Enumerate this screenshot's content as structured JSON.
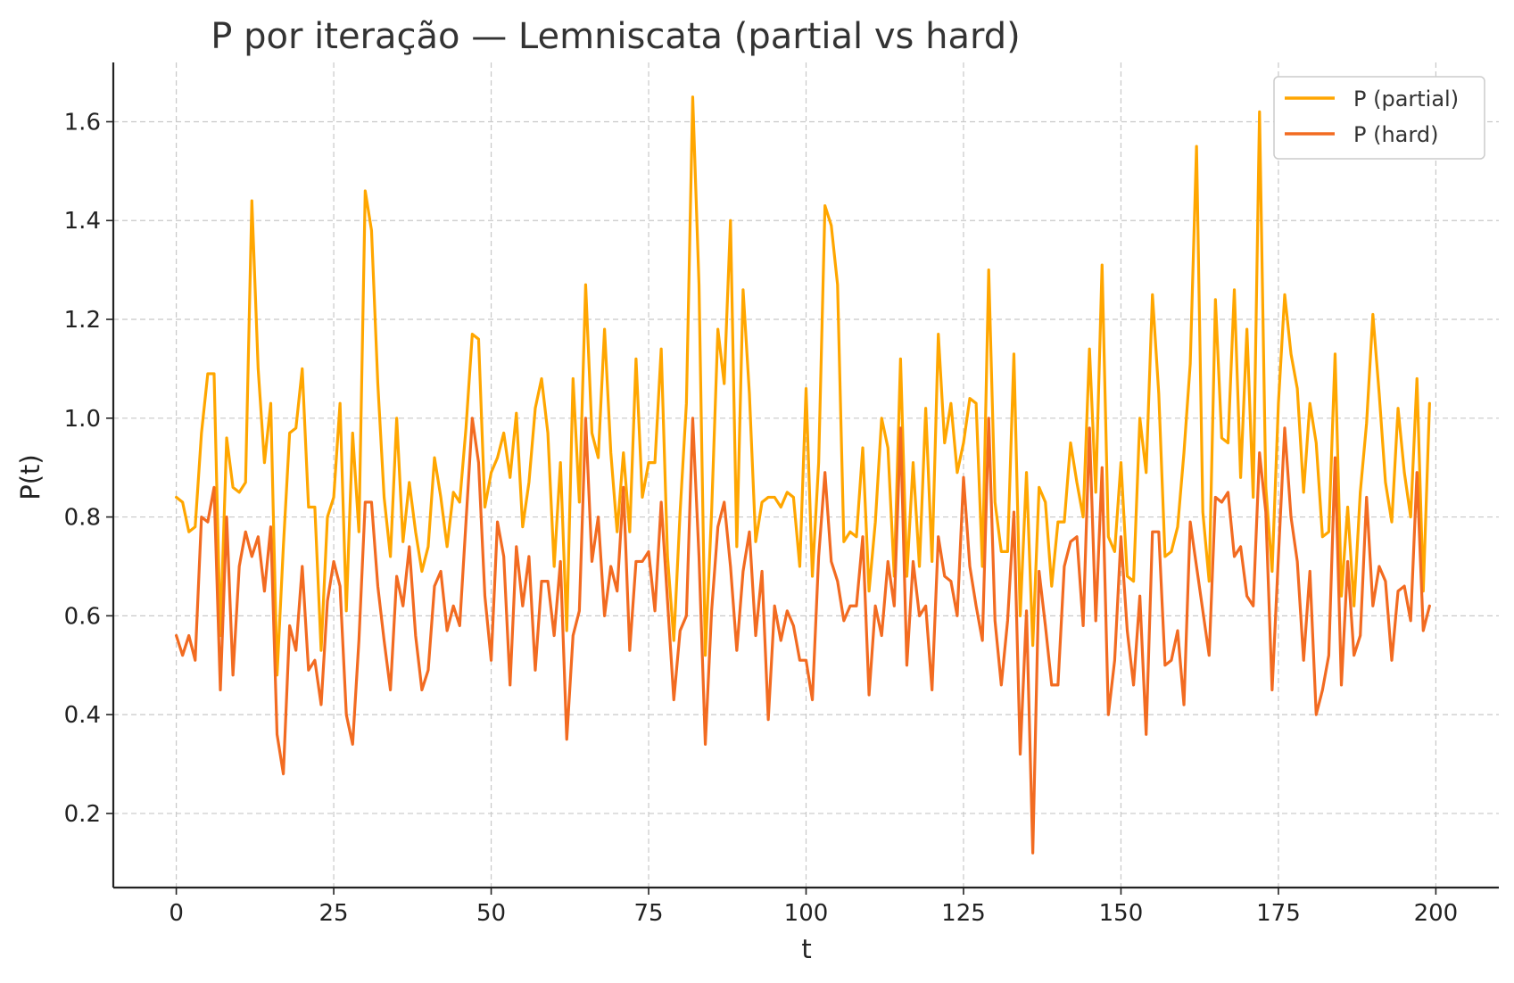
{
  "chart_data": {
    "type": "line",
    "title": "P por iteração — Lemniscata (partial vs hard)",
    "xlabel": "t",
    "ylabel": "P(t)",
    "xlim": [
      -10,
      210
    ],
    "ylim": [
      0.05,
      1.72
    ],
    "xticks": [
      0,
      25,
      50,
      75,
      100,
      125,
      150,
      175,
      200
    ],
    "yticks": [
      0.2,
      0.4,
      0.6,
      0.8,
      1.0,
      1.2,
      1.4,
      1.6
    ],
    "grid": true,
    "legend_position": "top-right",
    "series": [
      {
        "name": "P (partial)",
        "color": "#ffa600",
        "values": [
          0.84,
          0.83,
          0.77,
          0.78,
          0.97,
          1.09,
          1.09,
          0.56,
          0.96,
          0.86,
          0.85,
          0.87,
          1.44,
          1.1,
          0.91,
          1.03,
          0.48,
          0.74,
          0.97,
          0.98,
          1.1,
          0.82,
          0.82,
          0.53,
          0.8,
          0.84,
          1.03,
          0.61,
          0.97,
          0.77,
          1.46,
          1.38,
          1.07,
          0.84,
          0.72,
          1.0,
          0.75,
          0.87,
          0.77,
          0.69,
          0.74,
          0.92,
          0.84,
          0.74,
          0.85,
          0.83,
          0.98,
          1.17,
          1.16,
          0.82,
          0.89,
          0.92,
          0.97,
          0.88,
          1.01,
          0.78,
          0.87,
          1.02,
          1.08,
          0.97,
          0.7,
          0.91,
          0.57,
          1.08,
          0.83,
          1.27,
          0.97,
          0.92,
          1.18,
          0.93,
          0.77,
          0.93,
          0.77,
          1.12,
          0.84,
          0.91,
          0.91,
          1.14,
          0.72,
          0.55,
          0.81,
          1.03,
          1.65,
          1.27,
          0.52,
          0.81,
          1.18,
          1.07,
          1.4,
          0.74,
          1.26,
          1.05,
          0.75,
          0.83,
          0.84,
          0.84,
          0.82,
          0.85,
          0.84,
          0.7,
          1.06,
          0.68,
          0.91,
          1.43,
          1.39,
          1.27,
          0.75,
          0.77,
          0.76,
          0.94,
          0.65,
          0.79,
          1.0,
          0.94,
          0.68,
          1.12,
          0.68,
          0.91,
          0.7,
          1.02,
          0.71,
          1.17,
          0.95,
          1.03,
          0.89,
          0.95,
          1.04,
          1.03,
          0.7,
          1.3,
          0.83,
          0.73,
          0.73,
          1.13,
          0.6,
          0.89,
          0.54,
          0.86,
          0.83,
          0.66,
          0.79,
          0.79,
          0.95,
          0.87,
          0.8,
          1.14,
          0.85,
          1.31,
          0.76,
          0.73,
          0.91,
          0.68,
          0.67,
          1.0,
          0.89,
          1.25,
          1.05,
          0.72,
          0.73,
          0.78,
          0.93,
          1.11,
          1.55,
          0.81,
          0.67,
          1.24,
          0.96,
          0.95,
          1.26,
          0.88,
          1.18,
          0.84,
          1.62,
          0.86,
          0.69,
          1.03,
          1.25,
          1.13,
          1.06,
          0.85,
          1.03,
          0.95,
          0.76,
          0.77,
          1.13,
          0.64,
          0.82,
          0.62,
          0.85,
          0.99,
          1.21,
          1.05,
          0.87,
          0.79,
          1.02,
          0.89,
          0.8,
          1.08,
          0.65,
          1.03
        ]
      },
      {
        "name": "P (hard)",
        "color": "#f26b21",
        "values": [
          0.56,
          0.52,
          0.56,
          0.51,
          0.8,
          0.79,
          0.86,
          0.45,
          0.8,
          0.48,
          0.7,
          0.77,
          0.72,
          0.76,
          0.65,
          0.78,
          0.36,
          0.28,
          0.58,
          0.53,
          0.7,
          0.49,
          0.51,
          0.42,
          0.63,
          0.71,
          0.66,
          0.4,
          0.34,
          0.55,
          0.83,
          0.83,
          0.66,
          0.55,
          0.45,
          0.68,
          0.62,
          0.74,
          0.56,
          0.45,
          0.49,
          0.66,
          0.69,
          0.57,
          0.62,
          0.58,
          0.79,
          1.0,
          0.91,
          0.64,
          0.51,
          0.79,
          0.72,
          0.46,
          0.74,
          0.62,
          0.72,
          0.49,
          0.67,
          0.67,
          0.56,
          0.71,
          0.35,
          0.56,
          0.61,
          1.0,
          0.71,
          0.8,
          0.6,
          0.7,
          0.65,
          0.86,
          0.53,
          0.71,
          0.71,
          0.73,
          0.61,
          0.83,
          0.63,
          0.43,
          0.57,
          0.6,
          1.0,
          0.72,
          0.34,
          0.61,
          0.78,
          0.83,
          0.7,
          0.53,
          0.69,
          0.77,
          0.56,
          0.69,
          0.39,
          0.62,
          0.55,
          0.61,
          0.58,
          0.51,
          0.51,
          0.43,
          0.72,
          0.89,
          0.71,
          0.67,
          0.59,
          0.62,
          0.62,
          0.76,
          0.44,
          0.62,
          0.56,
          0.71,
          0.62,
          0.98,
          0.5,
          0.71,
          0.6,
          0.62,
          0.45,
          0.76,
          0.68,
          0.67,
          0.6,
          0.88,
          0.7,
          0.62,
          0.55,
          1.0,
          0.59,
          0.46,
          0.59,
          0.81,
          0.32,
          0.61,
          0.12,
          0.69,
          0.58,
          0.46,
          0.46,
          0.7,
          0.75,
          0.76,
          0.58,
          0.98,
          0.59,
          0.9,
          0.4,
          0.51,
          0.76,
          0.57,
          0.46,
          0.64,
          0.36,
          0.77,
          0.77,
          0.5,
          0.51,
          0.57,
          0.42,
          0.79,
          0.7,
          0.61,
          0.52,
          0.84,
          0.83,
          0.85,
          0.72,
          0.74,
          0.64,
          0.62,
          0.93,
          0.81,
          0.45,
          0.72,
          0.98,
          0.8,
          0.71,
          0.51,
          0.69,
          0.4,
          0.45,
          0.52,
          0.92,
          0.46,
          0.71,
          0.52,
          0.56,
          0.84,
          0.62,
          0.7,
          0.67,
          0.51,
          0.65,
          0.66,
          0.59,
          0.89,
          0.57,
          0.62
        ]
      }
    ]
  }
}
